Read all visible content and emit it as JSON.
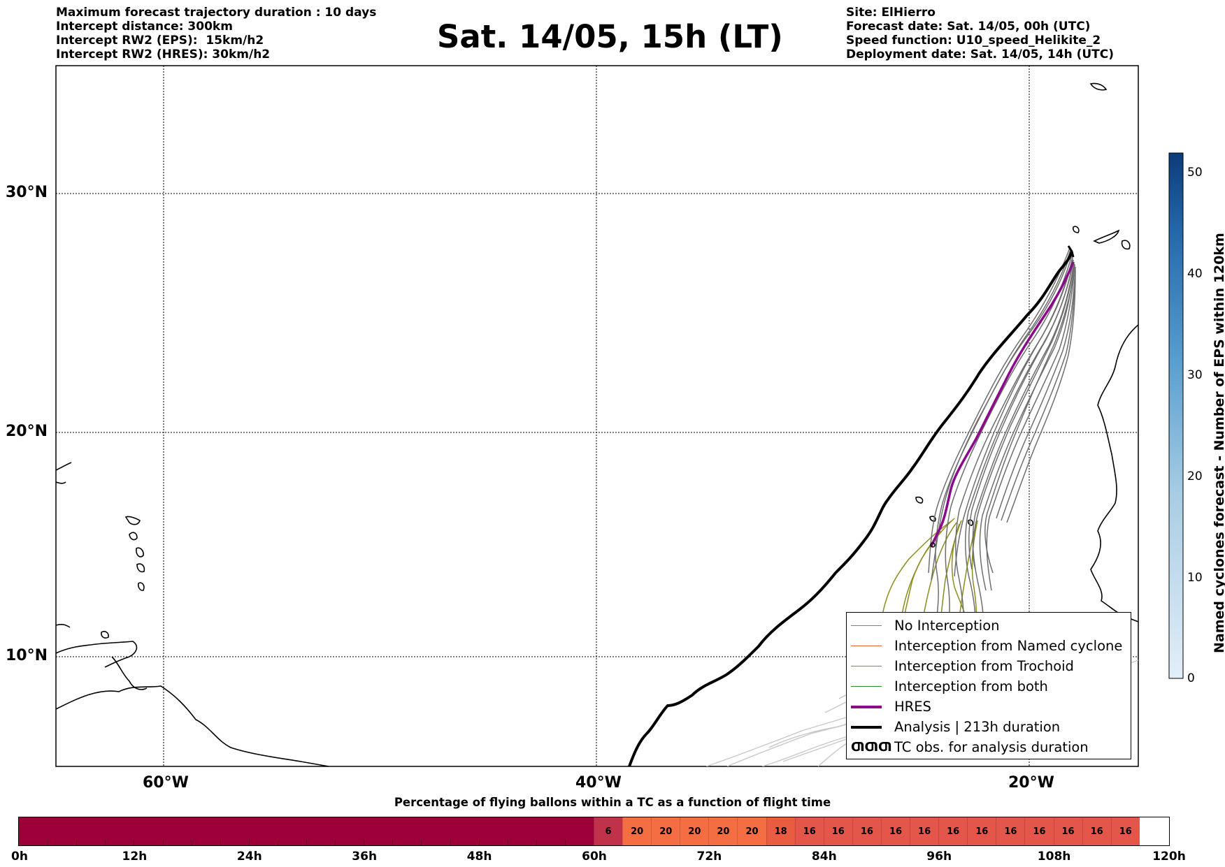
{
  "header_left": [
    "Maximum forecast trajectory duration : 10 days",
    "Intercept distance: 300km",
    "Intercept RW2 (EPS):  15km/h2",
    "Intercept RW2 (HRES): 30km/h2"
  ],
  "title": "Sat. 14/05, 15h (LT)",
  "header_right": [
    "Site: ElHierro",
    "Forecast date: Sat. 14/05, 00h (UTC)",
    "Speed function: U10_speed_Helikite_2",
    "Deployment date: Sat. 14/05, 14h (UTC)"
  ],
  "map": {
    "lat_labels": [
      "30°N",
      "20°N",
      "10°N"
    ],
    "lon_labels": [
      "60°W",
      "40°W",
      "20°W"
    ]
  },
  "colorbar": {
    "label": "Named cyclones forecast - Number of EPS within 120km",
    "ticks": [
      "50",
      "40",
      "30",
      "20",
      "10",
      "0"
    ],
    "color_low": "#e3eef8",
    "color_high": "#0c3b7a"
  },
  "legend": {
    "items": [
      {
        "label": "No Interception",
        "color": "#808080"
      },
      {
        "label": "Interception from Named cyclone",
        "color": "#e8642c"
      },
      {
        "label": "Interception from Trochoid",
        "color": "#8c8c1e"
      },
      {
        "label": "Interception from both",
        "color": "#2e8b2e"
      },
      {
        "label": "HRES",
        "color": "#8b0a8b"
      },
      {
        "label": "Analysis | 213h duration",
        "color": "#000000"
      },
      {
        "label": "TC obs. for analysis duration",
        "symbol": "ƢƢƢ"
      }
    ]
  },
  "timebar": {
    "title": "Percentage of flying ballons within a TC as a function of flight time",
    "cells": [
      "",
      "6",
      "20",
      "20",
      "20",
      "20",
      "20",
      "18",
      "16",
      "16",
      "16",
      "16",
      "16",
      "16",
      "16",
      "16",
      "16",
      "16",
      "16",
      "16"
    ],
    "cell_colors": {
      "0": "#9d0039",
      "6": "#c0314a",
      "20": "#f46d43",
      "18": "#ea5c42",
      "16": "#e4554a"
    },
    "labels": [
      "0h",
      "12h",
      "24h",
      "36h",
      "48h",
      "60h",
      "72h",
      "84h",
      "96h",
      "108h",
      "120h"
    ]
  }
}
